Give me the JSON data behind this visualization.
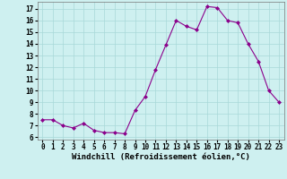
{
  "x": [
    0,
    1,
    2,
    3,
    4,
    5,
    6,
    7,
    8,
    9,
    10,
    11,
    12,
    13,
    14,
    15,
    16,
    17,
    18,
    19,
    20,
    21,
    22,
    23
  ],
  "y": [
    7.5,
    7.5,
    7.0,
    6.8,
    7.2,
    6.6,
    6.4,
    6.4,
    6.3,
    8.3,
    9.5,
    11.8,
    13.9,
    16.0,
    15.5,
    15.2,
    17.2,
    17.1,
    16.0,
    15.8,
    14.0,
    12.5,
    10.0,
    9.0
  ],
  "line_color": "#8B008B",
  "marker": "D",
  "marker_size": 2,
  "background_color": "#cef0f0",
  "grid_color": "#a8d8d8",
  "xlabel": "Windchill (Refroidissement éolien,°C)",
  "xlim": [
    -0.5,
    23.5
  ],
  "ylim": [
    5.8,
    17.6
  ],
  "yticks": [
    6,
    7,
    8,
    9,
    10,
    11,
    12,
    13,
    14,
    15,
    16,
    17
  ],
  "xticks": [
    0,
    1,
    2,
    3,
    4,
    5,
    6,
    7,
    8,
    9,
    10,
    11,
    12,
    13,
    14,
    15,
    16,
    17,
    18,
    19,
    20,
    21,
    22,
    23
  ],
  "tick_fontsize": 5.5,
  "xlabel_fontsize": 6.5
}
